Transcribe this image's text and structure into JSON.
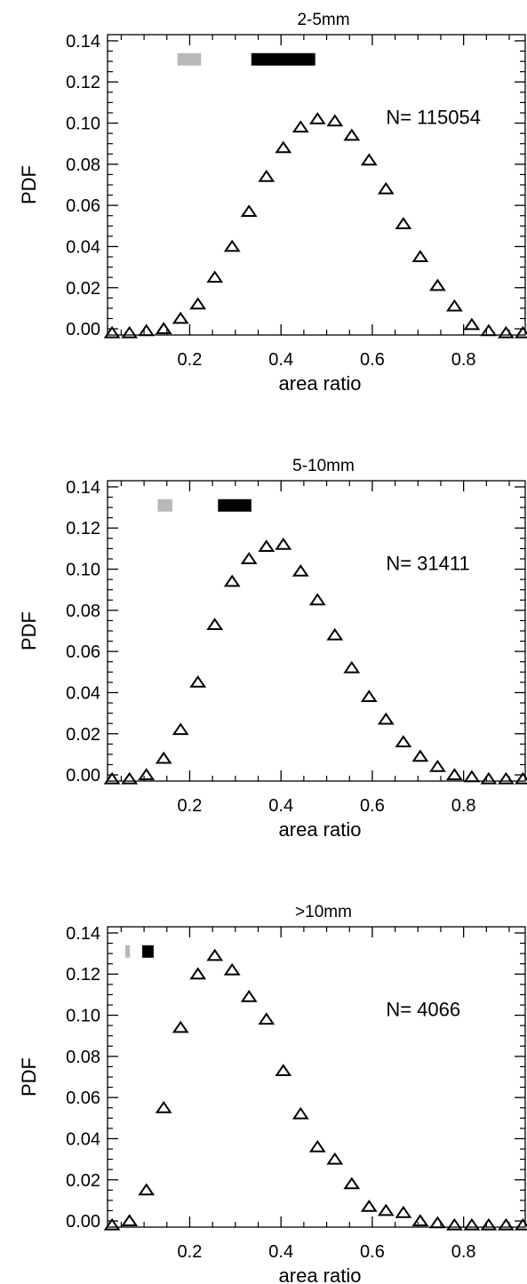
{
  "chart_data": [
    {
      "type": "scatter",
      "title": "2-5mm",
      "xlabel": "area ratio",
      "ylabel": "PDF",
      "xlim": [
        0.02,
        0.935
      ],
      "ylim": [
        -0.003,
        0.143
      ],
      "xticks": [
        0.2,
        0.4,
        0.6,
        0.8
      ],
      "xtick_labels": [
        "0.2",
        "0.4",
        "0.6",
        "0.8"
      ],
      "yticks": [
        0.0,
        0.02,
        0.04,
        0.06,
        0.08,
        0.1,
        0.12,
        0.14
      ],
      "ytick_labels": [
        "0.00",
        "0.02",
        "0.04",
        "0.06",
        "0.08",
        "0.10",
        "0.12",
        "0.14"
      ],
      "annotation": "N= 115054",
      "marker": "open-triangle",
      "x": [
        0.03,
        0.068,
        0.105,
        0.143,
        0.18,
        0.218,
        0.255,
        0.293,
        0.33,
        0.368,
        0.405,
        0.443,
        0.48,
        0.518,
        0.555,
        0.593,
        0.63,
        0.668,
        0.705,
        0.743,
        0.78,
        0.818,
        0.855,
        0.893,
        0.93
      ],
      "y": [
        -0.002,
        -0.002,
        -0.001,
        0.0,
        0.005,
        0.012,
        0.025,
        0.04,
        0.057,
        0.074,
        0.088,
        0.098,
        0.102,
        0.101,
        0.094,
        0.082,
        0.068,
        0.051,
        0.035,
        0.021,
        0.011,
        0.002,
        -0.001,
        -0.002,
        -0.002
      ],
      "range_bars": [
        {
          "color": "#b8b8b8",
          "x": [
            0.173,
            0.225
          ],
          "y": 0.131
        },
        {
          "color": "#000000",
          "x": [
            0.335,
            0.475
          ],
          "y": 0.131
        }
      ]
    },
    {
      "type": "scatter",
      "title": "5-10mm",
      "xlabel": "area ratio",
      "ylabel": "PDF",
      "xlim": [
        0.02,
        0.935
      ],
      "ylim": [
        -0.003,
        0.143
      ],
      "xticks": [
        0.2,
        0.4,
        0.6,
        0.8
      ],
      "xtick_labels": [
        "0.2",
        "0.4",
        "0.6",
        "0.8"
      ],
      "yticks": [
        0.0,
        0.02,
        0.04,
        0.06,
        0.08,
        0.1,
        0.12,
        0.14
      ],
      "ytick_labels": [
        "0.00",
        "0.02",
        "0.04",
        "0.06",
        "0.08",
        "0.10",
        "0.12",
        "0.14"
      ],
      "annotation": "N= 31411",
      "marker": "open-triangle",
      "x": [
        0.03,
        0.068,
        0.105,
        0.143,
        0.18,
        0.218,
        0.255,
        0.293,
        0.33,
        0.368,
        0.405,
        0.443,
        0.48,
        0.518,
        0.555,
        0.593,
        0.63,
        0.668,
        0.705,
        0.743,
        0.78,
        0.818,
        0.855,
        0.893,
        0.93
      ],
      "y": [
        -0.002,
        -0.002,
        0.0,
        0.008,
        0.022,
        0.045,
        0.073,
        0.094,
        0.105,
        0.111,
        0.112,
        0.099,
        0.085,
        0.068,
        0.052,
        0.038,
        0.027,
        0.016,
        0.009,
        0.004,
        0.0,
        -0.001,
        -0.002,
        -0.002,
        -0.002
      ],
      "range_bars": [
        {
          "color": "#b8b8b8",
          "x": [
            0.13,
            0.162
          ],
          "y": 0.131
        },
        {
          "color": "#000000",
          "x": [
            0.262,
            0.335
          ],
          "y": 0.131
        }
      ]
    },
    {
      "type": "scatter",
      "title": ">10mm",
      "xlabel": "area ratio",
      "ylabel": "PDF",
      "xlim": [
        0.02,
        0.935
      ],
      "ylim": [
        -0.003,
        0.143
      ],
      "xticks": [
        0.2,
        0.4,
        0.6,
        0.8
      ],
      "xtick_labels": [
        "0.2",
        "0.4",
        "0.6",
        "0.8"
      ],
      "yticks": [
        0.0,
        0.02,
        0.04,
        0.06,
        0.08,
        0.1,
        0.12,
        0.14
      ],
      "ytick_labels": [
        "0.00",
        "0.02",
        "0.04",
        "0.06",
        "0.08",
        "0.10",
        "0.12",
        "0.14"
      ],
      "annotation": "N= 4066",
      "marker": "open-triangle",
      "x": [
        0.03,
        0.068,
        0.105,
        0.143,
        0.18,
        0.218,
        0.255,
        0.293,
        0.33,
        0.368,
        0.405,
        0.443,
        0.48,
        0.518,
        0.555,
        0.593,
        0.63,
        0.668,
        0.705,
        0.743,
        0.78,
        0.818,
        0.855,
        0.893,
        0.93
      ],
      "y": [
        -0.002,
        0.0,
        0.015,
        0.055,
        0.094,
        0.12,
        0.129,
        0.122,
        0.109,
        0.098,
        0.073,
        0.052,
        0.036,
        0.03,
        0.018,
        0.007,
        0.005,
        0.004,
        0.0,
        -0.001,
        -0.002,
        -0.002,
        -0.002,
        -0.002,
        -0.002
      ],
      "range_bars": [
        {
          "color": "#b8b8b8",
          "x": [
            0.059,
            0.069
          ],
          "y": 0.131
        },
        {
          "color": "#000000",
          "x": [
            0.096,
            0.121
          ],
          "y": 0.131
        }
      ]
    }
  ]
}
